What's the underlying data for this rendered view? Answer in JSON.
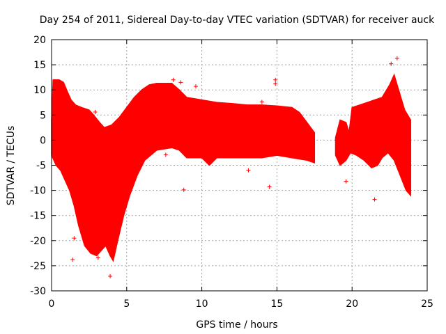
{
  "chart_data": {
    "type": "scatter",
    "title": "Day 254 of 2011, Sidereal Day-to-day VTEC variation (SDTVAR) for receiver auck",
    "xlabel": "GPS time / hours",
    "ylabel": "SDTVAR / TECUs",
    "xlim": [
      0,
      25
    ],
    "ylim": [
      -30,
      20
    ],
    "xticks": [
      0,
      5,
      10,
      15,
      20,
      25
    ],
    "yticks": [
      -30,
      -25,
      -20,
      -15,
      -10,
      -5,
      0,
      5,
      10,
      15,
      20
    ],
    "grid": true,
    "legend": "none",
    "series_color": "#ff0000",
    "marker": "plus",
    "band": {
      "description": "dense envelope of SDTVAR values (upper/lower bounds vs time)",
      "segments": [
        {
          "upper": [
            [
              0.0,
              4.0
            ],
            [
              0.1,
              12.0
            ],
            [
              0.5,
              12.0
            ],
            [
              0.8,
              11.5
            ],
            [
              1.0,
              10.0
            ],
            [
              1.3,
              8.0
            ],
            [
              1.6,
              7.0
            ],
            [
              2.0,
              6.5
            ],
            [
              2.5,
              6.0
            ],
            [
              2.8,
              5.0
            ],
            [
              3.2,
              3.5
            ],
            [
              3.5,
              2.5
            ],
            [
              4.0,
              3.0
            ],
            [
              4.5,
              4.5
            ],
            [
              5.0,
              6.5
            ],
            [
              5.5,
              8.5
            ],
            [
              6.0,
              10.0
            ],
            [
              6.5,
              11.0
            ],
            [
              7.0,
              11.3
            ],
            [
              8.0,
              11.3
            ],
            [
              8.5,
              10.0
            ],
            [
              9.0,
              8.5
            ],
            [
              10.0,
              8.0
            ],
            [
              11.0,
              7.5
            ],
            [
              12.0,
              7.3
            ],
            [
              13.0,
              7.0
            ],
            [
              14.0,
              7.0
            ],
            [
              15.0,
              6.8
            ],
            [
              16.0,
              6.5
            ],
            [
              16.5,
              5.5
            ],
            [
              17.0,
              3.5
            ],
            [
              17.5,
              1.5
            ]
          ],
          "lower": [
            [
              0.0,
              -3.0
            ],
            [
              0.3,
              -5.0
            ],
            [
              0.6,
              -6.0
            ],
            [
              0.9,
              -8.0
            ],
            [
              1.2,
              -10.0
            ],
            [
              1.5,
              -13.0
            ],
            [
              1.8,
              -17.0
            ],
            [
              2.2,
              -21.0
            ],
            [
              2.6,
              -22.5
            ],
            [
              3.0,
              -23.0
            ],
            [
              3.3,
              -22.0
            ],
            [
              3.6,
              -21.0
            ],
            [
              3.9,
              -23.0
            ],
            [
              4.1,
              -24.0
            ],
            [
              4.4,
              -20.0
            ],
            [
              4.8,
              -15.0
            ],
            [
              5.2,
              -11.0
            ],
            [
              5.7,
              -7.0
            ],
            [
              6.2,
              -4.0
            ],
            [
              7.0,
              -2.0
            ],
            [
              8.0,
              -1.5
            ],
            [
              8.5,
              -2.0
            ],
            [
              9.0,
              -3.5
            ],
            [
              10.0,
              -3.5
            ],
            [
              10.5,
              -5.0
            ],
            [
              11.0,
              -3.5
            ],
            [
              12.0,
              -3.5
            ],
            [
              13.0,
              -3.5
            ],
            [
              14.0,
              -3.5
            ],
            [
              15.0,
              -3.0
            ],
            [
              16.0,
              -3.5
            ],
            [
              17.0,
              -4.0
            ],
            [
              17.5,
              -4.5
            ]
          ]
        },
        {
          "upper": [
            [
              18.9,
              0.5
            ],
            [
              19.2,
              4.0
            ],
            [
              19.6,
              3.5
            ],
            [
              19.8,
              1.5
            ],
            [
              20.0,
              6.5
            ],
            [
              20.5,
              7.0
            ],
            [
              21.0,
              7.5
            ],
            [
              21.5,
              8.0
            ],
            [
              22.0,
              8.5
            ],
            [
              22.5,
              11.0
            ],
            [
              22.8,
              13.0
            ],
            [
              23.2,
              9.0
            ],
            [
              23.5,
              6.0
            ],
            [
              23.9,
              4.0
            ]
          ],
          "lower": [
            [
              18.9,
              -3.0
            ],
            [
              19.2,
              -5.0
            ],
            [
              19.6,
              -4.0
            ],
            [
              19.9,
              -2.5
            ],
            [
              20.3,
              -3.0
            ],
            [
              20.8,
              -4.0
            ],
            [
              21.3,
              -5.5
            ],
            [
              21.7,
              -5.0
            ],
            [
              22.0,
              -3.5
            ],
            [
              22.4,
              -2.5
            ],
            [
              22.8,
              -4.0
            ],
            [
              23.2,
              -7.0
            ],
            [
              23.6,
              -10.0
            ],
            [
              23.9,
              -11.0
            ]
          ]
        }
      ]
    },
    "outliers": [
      [
        1.4,
        -23.8
      ],
      [
        1.5,
        -19.5
      ],
      [
        2.9,
        5.6
      ],
      [
        3.1,
        -23.4
      ],
      [
        3.9,
        -27.1
      ],
      [
        7.6,
        -2.9
      ],
      [
        8.1,
        12.0
      ],
      [
        8.6,
        11.5
      ],
      [
        8.8,
        -9.9
      ],
      [
        9.6,
        10.7
      ],
      [
        13.1,
        -6.0
      ],
      [
        14.0,
        7.6
      ],
      [
        14.5,
        -9.3
      ],
      [
        14.9,
        12.0
      ],
      [
        14.9,
        11.2
      ],
      [
        19.6,
        -8.2
      ],
      [
        21.5,
        -11.8
      ],
      [
        22.6,
        15.2
      ],
      [
        23.0,
        16.3
      ]
    ]
  }
}
